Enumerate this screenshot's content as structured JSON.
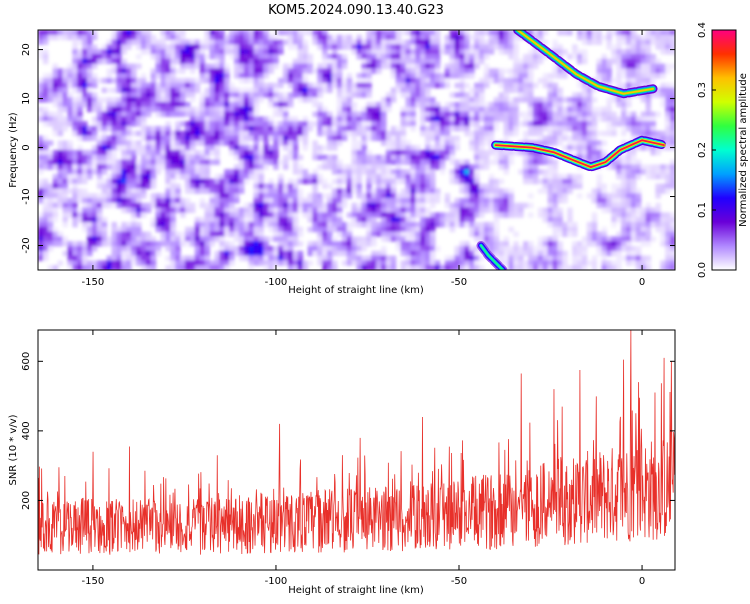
{
  "figure_title": "KOM5.2024.090.13.40.G23",
  "chart_data": [
    {
      "type": "heatmap",
      "title": "KOM5.2024.090.13.40.G23",
      "xlabel": "Height of straight line (km)",
      "ylabel": "Frequency (Hz)",
      "xlim": [
        -165,
        9
      ],
      "ylim": [
        -25,
        24
      ],
      "x_ticks": [
        -150,
        -100,
        -50,
        0
      ],
      "x_tick_labels": [
        "-150",
        "-100",
        "-50",
        "0"
      ],
      "y_ticks": [
        -20,
        -10,
        0,
        10,
        20
      ],
      "y_tick_labels": [
        "-20",
        "-10",
        "0",
        "10",
        "20"
      ],
      "colorbar": {
        "label": "Normalized spectral amplitude",
        "range": [
          0.0,
          0.4
        ],
        "ticks": [
          0.0,
          0.1,
          0.2,
          0.3,
          0.4
        ],
        "tick_labels": [
          "0.0",
          "0.1",
          "0.2",
          "0.3",
          "0.4"
        ],
        "colors": [
          "#ffffff",
          "#b088ff",
          "#6a00d8",
          "#2000ff",
          "#00a0ff",
          "#00ffd0",
          "#30ff40",
          "#d0ff00",
          "#ffc000",
          "#ff3000",
          "#ff0080"
        ]
      },
      "ridges": [
        {
          "name": "",
          "points": [
            [
              -34,
              24
            ],
            [
              -25,
              19
            ],
            [
              -18,
              15
            ],
            [
              -12,
              12.5
            ],
            [
              -5,
              11
            ],
            [
              3,
              12
            ]
          ],
          "peak": 0.32
        },
        {
          "name": "",
          "points": [
            [
              -40,
              0.5
            ],
            [
              -30,
              0
            ],
            [
              -24,
              -1
            ],
            [
              -19,
              -2.5
            ],
            [
              -14,
              -4
            ],
            [
              -10,
              -3
            ],
            [
              -6,
              -0.5
            ],
            [
              0,
              1.5
            ],
            [
              6,
              0.5
            ]
          ],
          "peak": 0.38
        },
        {
          "name": "",
          "points": [
            [
              -44,
              -20
            ],
            [
              -42,
              -22
            ],
            [
              -38,
              -25
            ]
          ],
          "peak": 0.22
        }
      ],
      "grid": false,
      "legend": "none"
    },
    {
      "type": "line",
      "title": "",
      "xlabel": "Height of straight line (km)",
      "ylabel": "SNR (10 * v/v)",
      "xlim": [
        -165,
        9
      ],
      "ylim": [
        0,
        690
      ],
      "x_ticks": [
        -150,
        -100,
        -50,
        0
      ],
      "x_tick_labels": [
        "-150",
        "-100",
        "-50",
        "0"
      ],
      "y_ticks": [
        200,
        400,
        600
      ],
      "y_tick_labels": [
        "200",
        "400",
        "600"
      ],
      "series": [
        {
          "name": "",
          "color": "#e8302a",
          "x_start": -165,
          "x_end": 9,
          "trend": [
            [
              -165,
              125
            ],
            [
              -120,
              125
            ],
            [
              -90,
              140
            ],
            [
              -60,
              150
            ],
            [
              -40,
              170
            ],
            [
              -20,
              200
            ],
            [
              0,
              230
            ],
            [
              9,
              235
            ]
          ],
          "spikes": [
            [
              -150,
              340
            ],
            [
              -140,
              355
            ],
            [
              -116,
              330
            ],
            [
              -99,
              420
            ],
            [
              -77,
              380
            ],
            [
              -60,
              440
            ],
            [
              -33,
              565
            ],
            [
              -24,
              520
            ],
            [
              -17,
              575
            ],
            [
              -5,
              605
            ],
            [
              -3,
              690
            ],
            [
              -1,
              540
            ],
            [
              6,
              610
            ],
            [
              8,
              600
            ]
          ]
        }
      ],
      "grid": false,
      "legend": "none"
    }
  ]
}
